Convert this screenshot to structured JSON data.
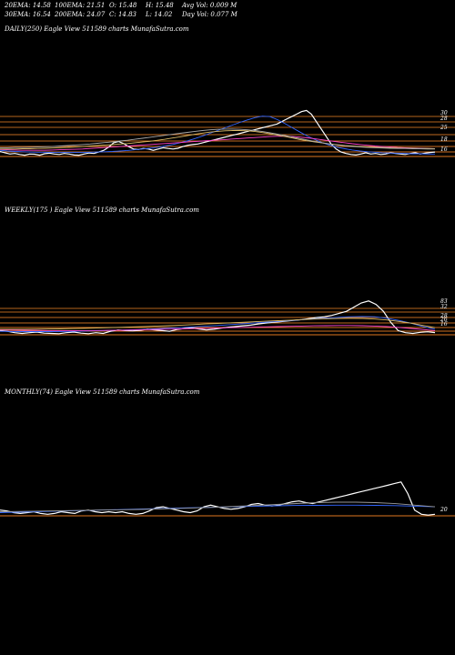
{
  "header": {
    "row1": [
      "20EMA: 14.58",
      "100EMA: 21.51",
      "O: 15.48",
      "H: 15.48",
      "Avg Vol: 0.009 M"
    ],
    "row2": [
      "30EMA: 16.54",
      "200EMA: 24.07",
      "C: 14.83",
      "L: 14.02",
      "Day Vol: 0.077 M"
    ]
  },
  "panels": [
    {
      "label": "DAILY(250) Eagle  View  511589 charts MunafaSutra.com"
    },
    {
      "label": "WEEKLY(175                              ) Eagle  View  511589 charts MunafaSutra.com"
    },
    {
      "label": "MONTHLY(74) Eagle  View  511589 charts MunafaSutra.com"
    }
  ],
  "chart_data": [
    {
      "type": "line",
      "title": "DAILY(250) Eagle View 511589 charts MunafaSutra.com",
      "right_labels": [
        "30",
        "28",
        "25",
        "18",
        "16"
      ],
      "series": [
        {
          "name": "price",
          "color": "#ffffff",
          "values": [
            15.0,
            14.5,
            14.0,
            14.2,
            13.8,
            13.5,
            14.0,
            13.9,
            13.5,
            14.1,
            14.3,
            14.0,
            13.8,
            14.2,
            14.0,
            13.6,
            13.5,
            14.0,
            14.4,
            14.2,
            14.8,
            15.5,
            16.8,
            18.5,
            19.0,
            18.2,
            17.0,
            16.0,
            15.8,
            16.2,
            16.0,
            15.5,
            16.0,
            16.5,
            16.2,
            16.0,
            16.3,
            17.0,
            17.5,
            17.8,
            18.0,
            18.5,
            19.0,
            19.5,
            20.0,
            20.5,
            21.0,
            21.5,
            22.0,
            22.5,
            23.0,
            23.5,
            24.0,
            24.5,
            25.0,
            25.5,
            26.0,
            27.0,
            28.0,
            29.0,
            30.0,
            31.0,
            31.5,
            30.0,
            27.0,
            24.0,
            21.0,
            18.0,
            16.0,
            14.8,
            14.2,
            13.8,
            13.6,
            14.0,
            14.5,
            14.0,
            14.2,
            13.8,
            14.0,
            14.5,
            14.2,
            14.0,
            13.8,
            14.2,
            14.5,
            14.0,
            14.3,
            14.6,
            14.8
          ]
        },
        {
          "name": "blue",
          "color": "#3366ff",
          "values": [
            15.5,
            15.2,
            15.0,
            14.9,
            14.8,
            14.7,
            14.7,
            14.6,
            14.6,
            14.6,
            14.6,
            14.6,
            14.7,
            14.8,
            14.9,
            15.0,
            15.2,
            15.4,
            15.7,
            16.0,
            16.3,
            16.7,
            17.2,
            17.8,
            18.5,
            19.3,
            20.2,
            21.2,
            22.3,
            23.4,
            24.5,
            25.6,
            26.7,
            27.7,
            28.6,
            29.2,
            29.0,
            27.8,
            26.2,
            24.5,
            22.8,
            21.2,
            19.8,
            18.5,
            17.5,
            16.7,
            16.1,
            15.6,
            15.2,
            14.9,
            14.7,
            14.5,
            14.4,
            14.3,
            14.2,
            14.1,
            14.1,
            14.0,
            14.0
          ]
        },
        {
          "name": "pink",
          "color": "#ff44cc",
          "values": [
            15.8,
            15.7,
            15.6,
            15.5,
            15.5,
            15.5,
            15.5,
            15.6,
            15.7,
            15.8,
            15.9,
            16.0,
            16.2,
            16.4,
            16.6,
            16.8,
            17.0,
            17.2,
            17.4,
            17.6,
            17.8,
            18.0,
            18.2,
            18.4,
            18.6,
            18.8,
            19.0,
            19.2,
            19.4,
            19.6,
            19.8,
            20.0,
            20.2,
            20.4,
            20.6,
            20.8,
            21.0,
            21.1,
            21.1,
            21.0,
            20.8,
            20.5,
            20.1,
            19.7,
            19.3,
            18.9,
            18.5,
            18.1,
            17.8,
            17.5,
            17.2,
            17.0,
            16.8,
            16.6,
            16.5,
            16.4,
            16.3,
            16.2,
            16.1
          ]
        },
        {
          "name": "yellow",
          "color": "#ddbb66",
          "values": [
            16.0,
            16.0,
            16.0,
            16.1,
            16.1,
            16.2,
            16.3,
            16.4,
            16.5,
            16.6,
            16.8,
            17.0,
            17.2,
            17.4,
            17.6,
            17.8,
            18.0,
            18.2,
            18.5,
            18.8,
            19.1,
            19.5,
            19.9,
            20.4,
            20.9,
            21.4,
            21.9,
            22.4,
            22.8,
            23.1,
            23.3,
            23.4,
            23.4,
            23.3,
            23.0,
            22.6,
            22.1,
            21.6,
            21.0,
            20.4,
            19.8,
            19.3,
            18.8,
            18.4,
            18.0,
            17.7,
            17.4,
            17.2,
            17.0,
            16.8,
            16.7,
            16.6,
            16.5,
            16.4,
            16.3,
            16.3,
            16.2,
            16.2,
            16.1
          ]
        },
        {
          "name": "gray",
          "color": "#aaaaaa",
          "values": [
            16.5,
            16.5,
            16.6,
            16.6,
            16.7,
            16.8,
            16.9,
            17.0,
            17.2,
            17.4,
            17.6,
            17.8,
            18.0,
            18.3,
            18.6,
            18.9,
            19.2,
            19.5,
            19.9,
            20.3,
            20.7,
            21.1,
            21.5,
            21.9,
            22.3,
            22.7,
            23.1,
            23.4,
            23.7,
            23.9,
            24.0,
            24.0,
            23.9,
            23.7,
            23.4,
            23.0,
            22.5,
            22.0,
            21.4,
            20.8,
            20.2,
            19.6,
            19.0,
            18.5,
            18.0,
            17.6,
            17.3,
            17.0,
            16.8,
            16.6,
            16.5,
            16.4,
            16.3,
            16.2,
            16.2,
            16.1,
            16.1,
            16.0,
            16.0
          ]
        }
      ]
    },
    {
      "type": "line",
      "title": "WEEKLY(175) Eagle View 511589 charts MunafaSutra.com",
      "right_labels": [
        "83",
        "32",
        "28",
        "26",
        "16"
      ],
      "series": [
        {
          "name": "price",
          "color": "#ffffff",
          "values": [
            16.0,
            15.5,
            14.5,
            14.0,
            14.5,
            15.0,
            14.2,
            14.0,
            13.8,
            14.5,
            15.0,
            14.2,
            13.8,
            14.5,
            14.0,
            15.5,
            16.5,
            16.0,
            15.8,
            16.2,
            17.0,
            16.5,
            16.0,
            15.5,
            16.8,
            17.5,
            18.0,
            17.2,
            16.5,
            17.0,
            17.8,
            18.5,
            19.0,
            19.5,
            20.0,
            20.8,
            21.5,
            22.0,
            22.5,
            23.0,
            23.5,
            24.0,
            24.8,
            25.5,
            26.0,
            27.0,
            28.5,
            30.0,
            33.0,
            36.0,
            37.5,
            35.0,
            30.0,
            22.0,
            16.0,
            14.5,
            14.0,
            14.8,
            15.2,
            14.6
          ]
        },
        {
          "name": "blue",
          "color": "#3366ff",
          "values": [
            15.5,
            15.4,
            15.3,
            15.3,
            15.3,
            15.4,
            15.5,
            15.7,
            15.9,
            16.1,
            16.4,
            16.7,
            17.0,
            17.4,
            17.8,
            18.2,
            18.7,
            19.2,
            19.7,
            20.3,
            20.9,
            21.5,
            22.1,
            22.7,
            23.3,
            23.9,
            24.5,
            25.1,
            25.6,
            26.0,
            26.2,
            26.0,
            25.0,
            23.4,
            21.4,
            19.0,
            17.0
          ]
        },
        {
          "name": "pink",
          "color": "#ff44cc",
          "values": [
            16.5,
            16.4,
            16.3,
            16.2,
            16.1,
            16.0,
            16.0,
            16.0,
            16.1,
            16.2,
            16.3,
            16.5,
            16.7,
            16.9,
            17.1,
            17.3,
            17.5,
            17.7,
            17.9,
            18.1,
            18.3,
            18.5,
            18.7,
            18.9,
            19.1,
            19.3,
            19.5,
            19.6,
            19.7,
            19.7,
            19.6,
            19.3,
            18.9,
            18.3,
            17.6,
            16.8,
            16.0
          ]
        },
        {
          "name": "yellow",
          "color": "#ddbb66",
          "values": [
            17.0,
            17.0,
            17.0,
            17.1,
            17.2,
            17.3,
            17.5,
            17.7,
            17.9,
            18.1,
            18.4,
            18.7,
            19.0,
            19.3,
            19.6,
            20.0,
            20.4,
            20.8,
            21.2,
            21.6,
            22.0,
            22.4,
            22.8,
            23.2,
            23.6,
            24.0,
            24.3,
            24.6,
            24.8,
            24.9,
            24.8,
            24.4,
            23.7,
            22.7,
            21.4,
            19.8,
            18.2
          ]
        }
      ]
    },
    {
      "type": "line",
      "title": "MONTHLY(74) Eagle View 511589 charts MunafaSutra.com",
      "right_labels": [
        "20"
      ],
      "series": [
        {
          "name": "price",
          "color": "#ffffff",
          "values": [
            20.0,
            19.5,
            18.5,
            18.0,
            18.5,
            19.0,
            18.0,
            17.5,
            18.0,
            19.0,
            18.5,
            18.0,
            19.5,
            20.0,
            19.0,
            18.5,
            19.0,
            18.5,
            19.0,
            18.0,
            17.5,
            18.0,
            19.5,
            21.5,
            22.0,
            21.0,
            20.0,
            19.0,
            18.5,
            19.5,
            22.0,
            23.0,
            22.0,
            21.0,
            20.5,
            21.0,
            22.0,
            23.5,
            24.0,
            23.0,
            22.5,
            23.0,
            24.0,
            25.0,
            25.5,
            24.5,
            24.0,
            25.0,
            26.0,
            27.0,
            28.0,
            29.0,
            30.0,
            31.0,
            32.0,
            33.0,
            34.0,
            35.0,
            36.0,
            37.0,
            30.0,
            20.0,
            17.5,
            17.0,
            17.5
          ]
        },
        {
          "name": "blue",
          "color": "#3366ff",
          "values": [
            18.5,
            18.8,
            19.1,
            19.4,
            19.7,
            20.0,
            20.3,
            20.6,
            20.9,
            21.2,
            21.5,
            21.8,
            22.1,
            22.4,
            22.6,
            22.8,
            22.9,
            23.0,
            23.0,
            22.9,
            22.7,
            22.4,
            22.0
          ]
        },
        {
          "name": "gray",
          "color": "#999999",
          "values": [
            19.0,
            19.2,
            19.4,
            19.6,
            19.8,
            20.0,
            20.2,
            20.4,
            20.7,
            21.0,
            21.4,
            21.8,
            22.3,
            22.8,
            23.4,
            24.0,
            24.5,
            24.8,
            24.8,
            24.5,
            23.9,
            23.0,
            22.0
          ]
        }
      ]
    }
  ]
}
